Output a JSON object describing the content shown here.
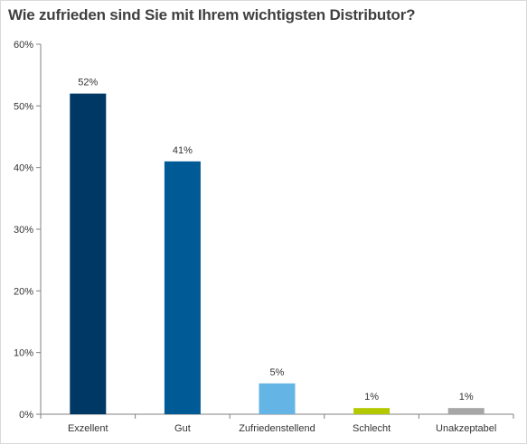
{
  "chart_data": {
    "type": "bar",
    "title": "Wie zufrieden sind Sie mit Ihrem wichtigsten Distributor?",
    "categories": [
      "Exzellent",
      "Gut",
      "Zufriedenstellend",
      "Schlecht",
      "Unakzeptabel"
    ],
    "values": [
      52,
      41,
      5,
      1,
      1
    ],
    "data_labels": [
      "52%",
      "41%",
      "5%",
      "1%",
      "1%"
    ],
    "colors": [
      "#003865",
      "#005a96",
      "#64b4e6",
      "#b4c800",
      "#a6a6a6"
    ],
    "ylim": [
      0,
      60
    ],
    "yticks": [
      0,
      10,
      20,
      30,
      40,
      50,
      60
    ],
    "ytick_labels": [
      "0%",
      "10%",
      "20%",
      "30%",
      "40%",
      "50%",
      "60%"
    ],
    "grid": false,
    "axis_color": "#808080"
  }
}
